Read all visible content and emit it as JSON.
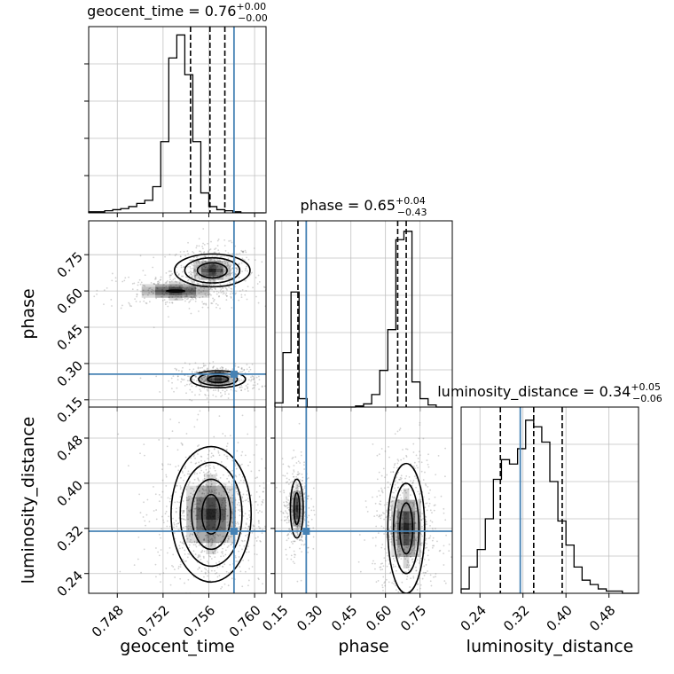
{
  "chart_data": {
    "type": "corner",
    "colors": {
      "truth": "#4682b4",
      "hist": "#000000",
      "grid": "#c0c0c0",
      "sample": "#7f7f7f"
    },
    "parameters": [
      {
        "name": "geocent_time",
        "range": [
          0.7455,
          0.761
        ],
        "ticks": [
          0.748,
          0.752,
          0.756,
          0.76
        ],
        "tick_labels": [
          "0.748",
          "0.752",
          "0.756",
          "0.760"
        ],
        "truth": 0.7582,
        "quantiles": [
          0.7544,
          0.7561,
          0.7574
        ],
        "title": {
          "prefix": "geocent_time = 0.76",
          "upper": "+0.00",
          "lower": "−0.00"
        },
        "hist": {
          "edges_start": 0.7455,
          "bin_width": 0.0007,
          "counts": [
            1,
            1,
            2,
            3,
            4,
            6,
            9,
            12,
            25,
            68,
            148,
            170,
            132,
            68,
            19,
            6,
            3,
            2,
            1,
            0,
            0,
            0
          ],
          "max": 178
        }
      },
      {
        "name": "phase",
        "range": [
          0.12,
          0.89
        ],
        "ticks": [
          0.15,
          0.3,
          0.45,
          0.6,
          0.75
        ],
        "tick_labels": [
          "0.15",
          "0.30",
          "0.45",
          "0.60",
          "0.75"
        ],
        "truth": 0.256,
        "quantiles": [
          0.22,
          0.653,
          0.69
        ],
        "title": {
          "prefix": "phase = 0.65",
          "upper": "+0.04",
          "lower": "−0.43"
        },
        "hist": {
          "edges_start": 0.12,
          "bin_width": 0.035,
          "counts": [
            4,
            52,
            110,
            8,
            0,
            0,
            0,
            0,
            0,
            0,
            1,
            3,
            12,
            35,
            74,
            160,
            168,
            24,
            8,
            2,
            0,
            0
          ],
          "max": 178
        }
      },
      {
        "name": "luminosity_distance",
        "range": [
          0.205,
          0.535
        ],
        "ticks": [
          0.24,
          0.32,
          0.4,
          0.48
        ],
        "tick_labels": [
          "0.24",
          "0.32",
          "0.40",
          "0.48"
        ],
        "truth": 0.315,
        "quantiles": [
          0.278,
          0.34,
          0.393
        ],
        "title": {
          "prefix": "luminosity_distance = 0.34",
          "upper": "+0.05",
          "lower": "−0.06"
        },
        "hist": {
          "edges_start": 0.205,
          "bin_width": 0.015,
          "counts": [
            2,
            12,
            20,
            34,
            52,
            61,
            59,
            66,
            79,
            76,
            69,
            51,
            33,
            22,
            12,
            6,
            4,
            2,
            1,
            1,
            0,
            0
          ],
          "max": 85
        }
      }
    ],
    "pairs": [
      {
        "x": 0,
        "y": 1,
        "modes": [
          {
            "cx": 0.7563,
            "cy": 0.685,
            "sx": 0.0012,
            "sy": 0.035,
            "n": 520,
            "levels": [
              [
                0.0013,
                0.031
              ],
              [
                0.0024,
                0.052
              ],
              [
                0.0033,
                0.068
              ]
            ]
          },
          {
            "cx": 0.7531,
            "cy": 0.6,
            "sx": 0.0022,
            "sy": 0.025,
            "n": 280,
            "levels": [
              [
                0.0008,
                0.004
              ]
            ]
          },
          {
            "cx": 0.7568,
            "cy": 0.235,
            "sx": 0.0012,
            "sy": 0.02,
            "n": 420,
            "levels": [
              [
                0.0009,
                0.014
              ],
              [
                0.0017,
                0.026
              ],
              [
                0.0024,
                0.035
              ]
            ]
          }
        ]
      },
      {
        "x": 0,
        "y": 2,
        "modes": [
          {
            "cx": 0.7562,
            "cy": 0.345,
            "sx": 0.0016,
            "sy": 0.045,
            "n": 1000,
            "levels": [
              [
                0.0008,
                0.035
              ],
              [
                0.0017,
                0.062
              ],
              [
                0.0027,
                0.092
              ],
              [
                0.0035,
                0.12
              ]
            ]
          }
        ]
      },
      {
        "x": 1,
        "y": 2,
        "modes": [
          {
            "cx": 0.215,
            "cy": 0.355,
            "sx": 0.02,
            "sy": 0.028,
            "n": 380,
            "levels": [
              [
                0.012,
                0.028
              ],
              [
                0.028,
                0.052
              ]
            ]
          },
          {
            "cx": 0.69,
            "cy": 0.32,
            "sx": 0.048,
            "sy": 0.045,
            "n": 720,
            "levels": [
              [
                0.028,
                0.045
              ],
              [
                0.055,
                0.08
              ],
              [
                0.08,
                0.115
              ]
            ]
          }
        ]
      }
    ]
  }
}
